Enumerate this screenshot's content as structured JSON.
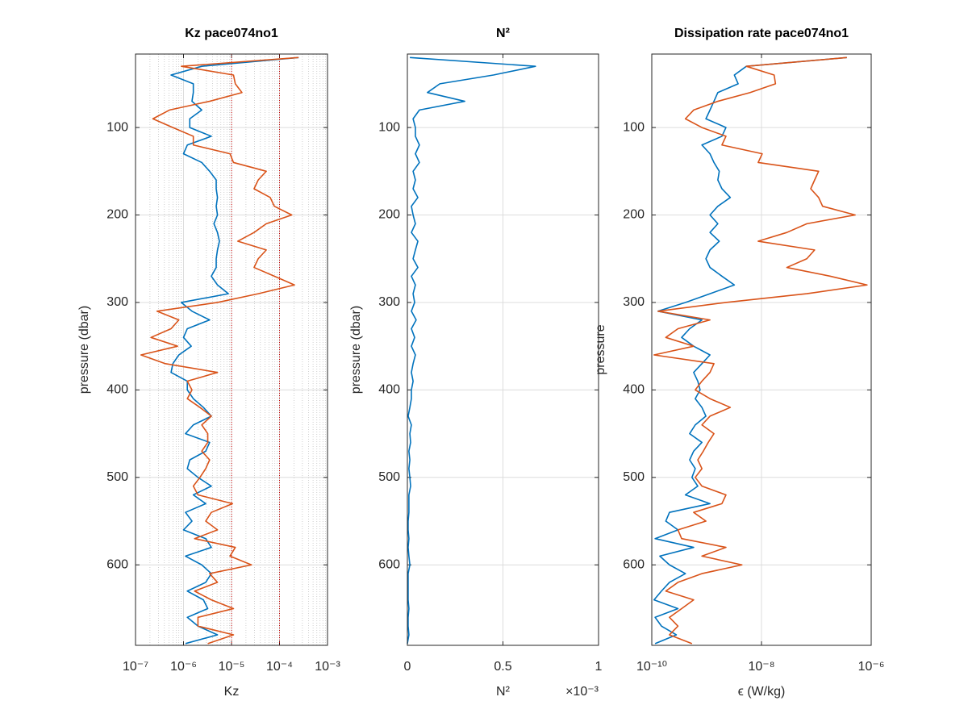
{
  "chart_data": [
    {
      "type": "line",
      "title": "Kz pace074no1",
      "xlabel": "Kz",
      "ylabel": "pressure (dbar)",
      "xscale": "log",
      "xlim": [
        1e-07,
        0.001
      ],
      "xticks": [
        {
          "value": 1e-07,
          "label": "10⁻⁷"
        },
        {
          "value": 1e-06,
          "label": "10⁻⁶"
        },
        {
          "value": 1e-05,
          "label": "10⁻⁵"
        },
        {
          "value": 0.0001,
          "label": "10⁻⁴"
        },
        {
          "value": 0.001,
          "label": "10⁻³"
        }
      ],
      "ylim": [
        16,
        692
      ],
      "yticks": [
        100,
        200,
        300,
        400,
        500,
        600
      ],
      "y_reversed": true,
      "grid": true,
      "minor_grid": true,
      "reference_lines": {
        "values": [
          1e-05,
          0.0001
        ],
        "color": "#cc0000"
      },
      "y": [
        20,
        30,
        40,
        50,
        60,
        70,
        80,
        90,
        100,
        110,
        120,
        130,
        140,
        150,
        160,
        170,
        180,
        190,
        200,
        210,
        220,
        230,
        240,
        250,
        260,
        270,
        280,
        290,
        300,
        310,
        320,
        330,
        340,
        350,
        360,
        370,
        380,
        390,
        400,
        410,
        420,
        430,
        440,
        450,
        460,
        470,
        480,
        490,
        500,
        510,
        520,
        530,
        540,
        550,
        560,
        570,
        580,
        590,
        600,
        610,
        620,
        630,
        640,
        650,
        660,
        670,
        680,
        690
      ],
      "series": [
        {
          "color": "#0072bd",
          "values": [
            0.00025,
            2.4e-06,
            5.5e-07,
            1.6e-06,
            1.6e-06,
            1.5e-06,
            2.4e-06,
            1.35e-06,
            1.35e-06,
            3.8e-06,
            1.2e-06,
            1e-06,
            2.4e-06,
            3.5e-06,
            4.8e-06,
            4.8e-06,
            5.1e-06,
            4.8e-06,
            5.1e-06,
            4.3e-06,
            5.1e-06,
            5.6e-06,
            5.1e-06,
            4.8e-06,
            4.8e-06,
            3.8e-06,
            5.1e-06,
            8.6e-06,
            9e-07,
            1.5e-06,
            3.5e-06,
            1.2e-06,
            1e-06,
            1.45e-06,
            8e-07,
            6e-07,
            5.5e-07,
            1.2e-06,
            1.2e-06,
            1.6e-06,
            2.6e-06,
            3.8e-06,
            1.6e-06,
            1.1e-06,
            3.5e-06,
            2.9e-06,
            1.35e-06,
            1.2e-06,
            2e-06,
            3.8e-06,
            1.6e-06,
            2.9e-06,
            1.1e-06,
            1.5e-06,
            1e-06,
            2.9e-06,
            3.8e-06,
            1.1e-06,
            2.4e-06,
            3.8e-06,
            2.9e-06,
            1.2e-06,
            2.6e-06,
            3.2e-06,
            1.2e-06,
            2e-06,
            5.1e-06,
            1.1e-06
          ]
        },
        {
          "color": "#d95319",
          "values": [
            0.00025,
            9e-07,
            1.1e-05,
            1.2e-05,
            1.65e-05,
            3.5e-06,
            5.1e-07,
            2.3e-07,
            6e-07,
            1.6e-06,
            1.6e-06,
            9.3e-06,
            1.1e-05,
            5.3e-05,
            3.6e-05,
            2.95e-05,
            6.4e-05,
            7.8e-05,
            0.00018,
            5.3e-05,
            2.95e-05,
            1.35e-05,
            5.3e-05,
            3.6e-05,
            2.95e-05,
            7.8e-05,
            0.000205,
            3.6e-05,
            5.1e-06,
            2.8e-07,
            8e-07,
            5.5e-07,
            2.1e-07,
            7.5e-07,
            1.3e-07,
            4.2e-07,
            5.1e-06,
            1.2e-06,
            1.5e-06,
            1.2e-06,
            2.2e-06,
            3.8e-06,
            2.4e-06,
            3.2e-06,
            3.2e-06,
            2.4e-06,
            3.5e-06,
            2.9e-06,
            2.2e-06,
            1.6e-06,
            2e-06,
            1.05e-05,
            3.8e-06,
            2.9e-06,
            5.1e-06,
            1.7e-06,
            1.2e-05,
            9.3e-06,
            2.6e-05,
            3.5e-06,
            5.1e-06,
            1.7e-06,
            3.8e-06,
            1.1e-05,
            2e-06,
            2e-06,
            1.1e-05,
            3.2e-06
          ]
        }
      ]
    },
    {
      "type": "line",
      "title": "N²",
      "xlabel": "N²",
      "x_exponent_label": "×10⁻³",
      "ylabel": "pressure (dbar)",
      "xscale": "linear",
      "xlim": [
        0,
        0.001
      ],
      "xticks": [
        0,
        {
          "value": 0.0005,
          "label": "0.5"
        },
        {
          "value": 0.001,
          "label": "1"
        }
      ],
      "ylim": [
        16,
        692
      ],
      "yticks": [
        100,
        200,
        300,
        400,
        500,
        600
      ],
      "y_reversed": true,
      "grid": true,
      "y": [
        20,
        30,
        40,
        50,
        60,
        70,
        80,
        90,
        100,
        110,
        120,
        130,
        140,
        150,
        160,
        170,
        180,
        190,
        200,
        210,
        220,
        230,
        240,
        250,
        260,
        270,
        280,
        290,
        300,
        310,
        320,
        330,
        340,
        350,
        360,
        370,
        380,
        390,
        400,
        410,
        420,
        430,
        440,
        450,
        460,
        470,
        480,
        490,
        500,
        510,
        520,
        530,
        540,
        550,
        560,
        570,
        580,
        590,
        600,
        610,
        620,
        630,
        640,
        650,
        660,
        670,
        680,
        690
      ],
      "series": [
        {
          "color": "#0072bd",
          "values": [
            1.3e-05,
            0.00067,
            0.00045,
            0.00017,
            0.000105,
            0.0003,
            6.3e-05,
            3e-05,
            4.2e-05,
            4.2e-05,
            6.3e-05,
            4.2e-05,
            6.3e-05,
            3e-05,
            4.2e-05,
            3e-05,
            5.5e-05,
            2.1e-05,
            3e-05,
            4.2e-05,
            2.1e-05,
            5.5e-05,
            4.2e-05,
            3e-05,
            5.5e-05,
            2.1e-05,
            4.2e-05,
            3e-05,
            3.8e-05,
            2.1e-05,
            4.6e-05,
            2.1e-05,
            3.8e-05,
            2.1e-05,
            4.2e-05,
            3e-05,
            2.1e-05,
            3e-05,
            2.1e-05,
            2.1e-05,
            1.3e-05,
            4e-06,
            2.1e-05,
            1.3e-05,
            1.7e-05,
            8e-06,
            1.3e-05,
            8e-06,
            1.3e-05,
            1.7e-05,
            8e-06,
            8e-06,
            8e-06,
            4e-06,
            4e-06,
            8e-06,
            4e-06,
            8e-06,
            1.3e-05,
            4e-06,
            4e-06,
            4e-06,
            4e-06,
            8e-06,
            4e-06,
            4e-06,
            8e-06,
            0
          ]
        }
      ]
    },
    {
      "type": "line",
      "title": "Dissipation rate pace074no1",
      "xlabel": "ϵ (W/kg)",
      "ylabel": "pressure",
      "xscale": "log",
      "xlim": [
        1e-10,
        1e-06
      ],
      "xticks": [
        {
          "value": 1e-10,
          "label": "10⁻¹⁰"
        },
        {
          "value": 1e-08,
          "label": "10⁻⁸"
        },
        {
          "value": 1e-06,
          "label": "10⁻⁶"
        }
      ],
      "ylim": [
        16,
        692
      ],
      "yticks": [
        100,
        200,
        300,
        400,
        500,
        600
      ],
      "y_reversed": true,
      "grid": true,
      "y": [
        20,
        30,
        40,
        50,
        60,
        70,
        80,
        90,
        100,
        110,
        120,
        130,
        140,
        150,
        160,
        170,
        180,
        190,
        200,
        210,
        220,
        230,
        240,
        250,
        260,
        270,
        280,
        290,
        300,
        310,
        320,
        330,
        340,
        350,
        360,
        370,
        380,
        390,
        400,
        410,
        420,
        430,
        440,
        450,
        460,
        470,
        480,
        490,
        500,
        510,
        520,
        530,
        540,
        550,
        560,
        570,
        580,
        590,
        600,
        610,
        620,
        630,
        640,
        650,
        660,
        670,
        680,
        690
      ],
      "series": [
        {
          "color": "#0072bd",
          "values": [
            3.6e-07,
            5.3e-09,
            3.2e-09,
            3.75e-09,
            1.6e-09,
            1.36e-09,
            1.15e-09,
            9.7e-10,
            2.25e-09,
            1.9e-09,
            8.2e-10,
            1.15e-09,
            1.36e-09,
            1.7e-09,
            1.6e-09,
            1.9e-09,
            2.7e-09,
            1.6e-09,
            1.15e-09,
            1.6e-09,
            1.15e-09,
            1.7e-09,
            1.15e-09,
            9.7e-10,
            1.15e-09,
            1.9e-09,
            3.2e-09,
            1.15e-09,
            4.1e-10,
            1.3e-10,
            8.2e-10,
            4.9e-10,
            3.5e-10,
            5.8e-10,
            1.15e-09,
            8.2e-10,
            5.8e-10,
            6.9e-10,
            7.6e-10,
            6.2e-10,
            8.2e-10,
            9.7e-10,
            6.2e-10,
            4.9e-10,
            8.2e-10,
            5.8e-10,
            4.9e-10,
            6.2e-10,
            5.4e-10,
            6.9e-10,
            4.1e-10,
            1.15e-09,
            2.1e-10,
            1.8e-10,
            3e-10,
            1.15e-10,
            5.8e-10,
            1.4e-10,
            2.1e-10,
            4.1e-10,
            2.1e-10,
            1.5e-10,
            1.1e-10,
            3e-10,
            1.15e-10,
            1.5e-10,
            2.8e-10,
            1.15e-10
          ]
        },
        {
          "color": "#d95319",
          "values": [
            3.6e-07,
            5.3e-09,
            1.7e-08,
            1.8e-08,
            6.2e-09,
            1.6e-09,
            5.8e-10,
            4.1e-10,
            8.2e-10,
            2.25e-09,
            1.9e-09,
            1.03e-08,
            8.7e-09,
            1.1e-07,
            9.3e-08,
            7.9e-08,
            1.1e-07,
            1.3e-07,
            5.1e-07,
            6.7e-08,
            2.9e-08,
            8.7e-09,
            9.3e-08,
            6.7e-08,
            2.9e-08,
            1.8e-07,
            8.4e-07,
            6.7e-08,
            2.25e-09,
            1.3e-10,
            1.15e-09,
            3e-10,
            1.8e-10,
            5.8e-10,
            1.1e-10,
            1.36e-09,
            1.15e-09,
            8.2e-10,
            6.2e-10,
            1.15e-09,
            2.7e-09,
            1.15e-09,
            8.2e-10,
            1.36e-09,
            1.07e-09,
            8.7e-10,
            6.9e-10,
            8.2e-10,
            6.2e-10,
            8.2e-10,
            2.25e-09,
            1.9e-09,
            5.8e-10,
            9.7e-10,
            3e-10,
            3.5e-10,
            2.25e-09,
            8.2e-10,
            4.4e-09,
            8.2e-10,
            3e-10,
            1.8e-10,
            5.8e-10,
            3.5e-10,
            2.1e-10,
            3e-10,
            2.1e-10,
            5.4e-10
          ]
        }
      ]
    }
  ]
}
